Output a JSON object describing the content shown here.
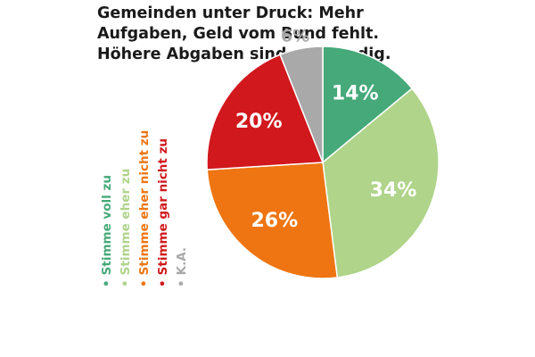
{
  "chart_data": {
    "type": "pie",
    "title": "Gemeinden unter Druck: Mehr Aufgaben, Geld vom Bund fehlt. Höhere Abgaben sind notwendig.",
    "slices": [
      {
        "label": "Stimme voll zu",
        "value": 14,
        "value_label": "14%",
        "color": "#46a97a",
        "label_color": "#ffffff"
      },
      {
        "label": "Stimme eher zu",
        "value": 34,
        "value_label": "34%",
        "color": "#afd48a",
        "label_color": "#ffffff"
      },
      {
        "label": "Stimme eher nicht zu",
        "value": 26,
        "value_label": "26%",
        "color": "#ee7512",
        "label_color": "#ffffff"
      },
      {
        "label": "Stimme gar nicht zu",
        "value": 20,
        "value_label": "20%",
        "color": "#d1181d",
        "label_color": "#ffffff"
      },
      {
        "label": "K.A.",
        "value": 6,
        "value_label": "6%",
        "color": "#a9a9a9",
        "label_color": "#a9a9a9"
      }
    ],
    "legend_placement": "bottom-left, rotated vertical"
  }
}
